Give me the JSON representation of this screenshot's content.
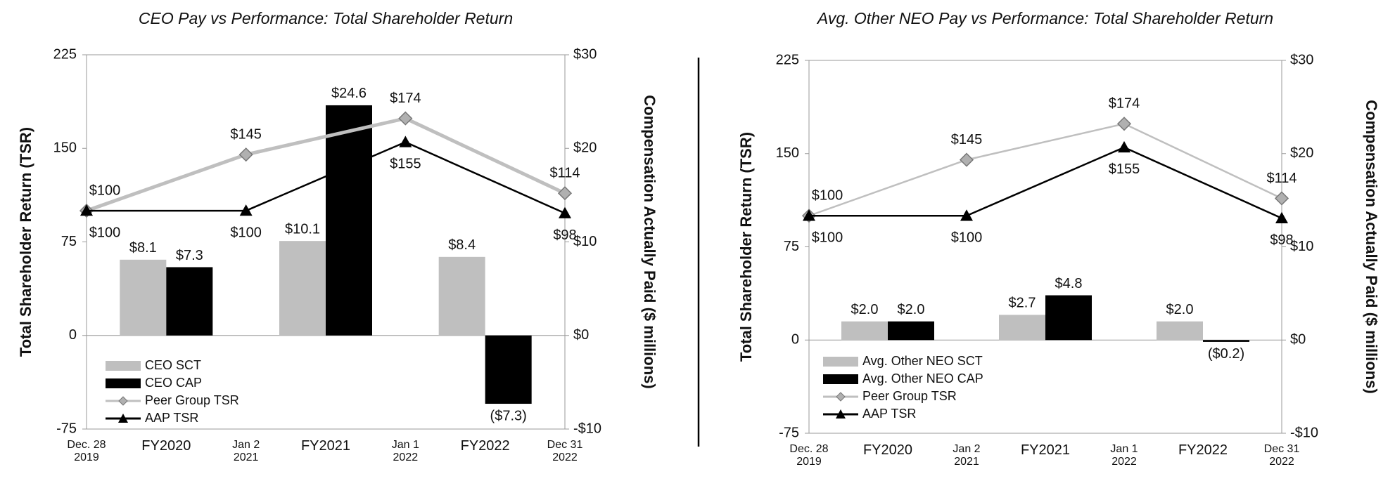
{
  "chart_data": [
    {
      "type": "bar-line",
      "title": "CEO Pay vs Performance: Total Shareholder Return",
      "ylabel": "Total Shareholder Return (TSR)",
      "y2label": "Compensation Actually Paid ($ millions)",
      "categories": [
        "FY2020",
        "FY2021",
        "FY2022"
      ],
      "x": [
        "Dec. 28\n2019",
        "Jan 2\n2021",
        "Jan 1\n2022",
        "Dec 31\n2022"
      ],
      "ylim": [
        -75,
        225
      ],
      "yticks": [
        -75,
        0,
        75,
        150,
        225
      ],
      "y2lim": [
        -10,
        30
      ],
      "y2ticks": [
        {
          "value": -10,
          "label": "-$10"
        },
        {
          "value": 0,
          "label": "$0"
        },
        {
          "value": 10,
          "label": "$10"
        },
        {
          "value": 20,
          "label": "$20"
        },
        {
          "value": 30,
          "label": "$30"
        }
      ],
      "series": [
        {
          "name": "CEO SCT",
          "mark": "bar",
          "axis": "y2",
          "color": "#bfbfbf",
          "values": [
            8.1,
            10.1,
            8.4
          ],
          "value_labels": [
            "$8.1",
            "$10.1",
            "$8.4"
          ]
        },
        {
          "name": "CEO CAP",
          "mark": "bar",
          "axis": "y2",
          "color": "#000000",
          "values": [
            7.3,
            24.6,
            -7.3
          ],
          "value_labels": [
            "$7.3",
            "$24.6",
            "($7.3)"
          ]
        },
        {
          "name": "Peer Group TSR",
          "mark": "line",
          "marker": "diamond",
          "color": "#bfbfbf",
          "values": [
            100,
            145,
            174,
            114
          ],
          "value_labels": [
            "$100",
            "$145",
            "$174",
            "$114"
          ]
        },
        {
          "name": "AAP TSR",
          "mark": "line",
          "marker": "triangle",
          "color": "#000000",
          "values": [
            100,
            100,
            155,
            98
          ],
          "value_labels": [
            "$100",
            "$100",
            "$155",
            "$98"
          ]
        }
      ]
    },
    {
      "type": "bar-line",
      "title": "Avg. Other NEO Pay vs Performance: Total Shareholder Return",
      "ylabel": "Total Shareholder Return (TSR)",
      "y2label": "Compensation Actually Paid ($ millions)",
      "categories": [
        "FY2020",
        "FY2021",
        "FY2022"
      ],
      "x": [
        "Dec. 28\n2019",
        "Jan 2\n2021",
        "Jan 1\n2022",
        "Dec 31\n2022"
      ],
      "ylim": [
        -75,
        225
      ],
      "yticks": [
        -75,
        0,
        75,
        150,
        225
      ],
      "y2lim": [
        -10,
        30
      ],
      "y2ticks": [
        {
          "value": -10,
          "label": "-$10"
        },
        {
          "value": 0,
          "label": "$0"
        },
        {
          "value": 10,
          "label": "$10"
        },
        {
          "value": 20,
          "label": "$20"
        },
        {
          "value": 30,
          "label": "$30"
        }
      ],
      "series": [
        {
          "name": "Avg. Other NEO SCT",
          "mark": "bar",
          "axis": "y2",
          "color": "#bfbfbf",
          "values": [
            2,
            2.7,
            2
          ],
          "value_labels": [
            "$2.0",
            "$2.7",
            "$2.0"
          ]
        },
        {
          "name": "Avg. Other NEO CAP",
          "mark": "bar",
          "axis": "y2",
          "color": "#000000",
          "values": [
            2,
            4.8,
            -0.2
          ],
          "value_labels": [
            "$2.0",
            "$4.8",
            "($0.2)"
          ]
        },
        {
          "name": "Peer Group TSR",
          "mark": "line",
          "marker": "diamond",
          "color": "#bfbfbf",
          "values": [
            100,
            145,
            174,
            114
          ],
          "value_labels": [
            "$100",
            "$145",
            "$174",
            "$114"
          ]
        },
        {
          "name": "AAP TSR",
          "mark": "line",
          "marker": "triangle",
          "color": "#000000",
          "values": [
            100,
            100,
            155,
            98
          ],
          "value_labels": [
            "$100",
            "$100",
            "$155",
            "$98"
          ]
        }
      ]
    }
  ]
}
